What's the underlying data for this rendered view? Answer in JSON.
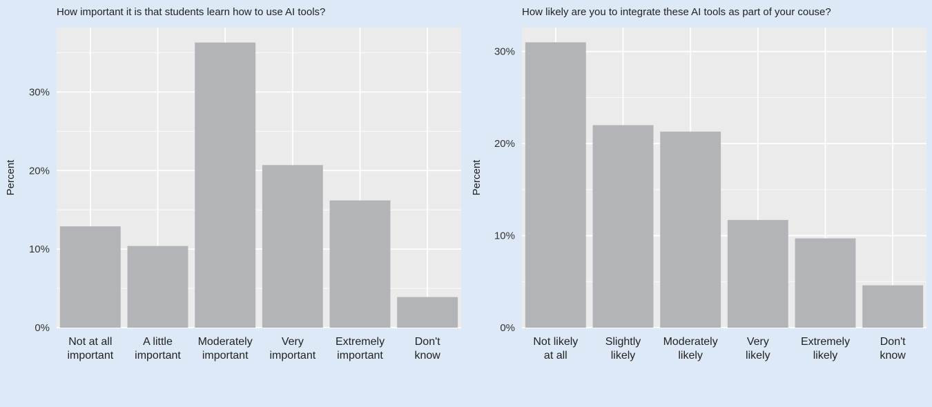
{
  "chart_data": [
    {
      "type": "bar",
      "title": "How important it is that students learn how to use AI tools?",
      "ylabel": "Percent",
      "xlabel": "",
      "categories": [
        [
          "Not at all",
          "important"
        ],
        [
          "A little",
          "important"
        ],
        [
          "Moderately",
          "important"
        ],
        [
          "Very",
          "important"
        ],
        [
          "Extremely",
          "important"
        ],
        [
          "Don't",
          "know"
        ]
      ],
      "values": [
        12.9,
        10.4,
        36.3,
        20.7,
        16.2,
        3.9
      ],
      "yticks": [
        0,
        10,
        20,
        30
      ],
      "ytick_labels": [
        "0%",
        "10%",
        "20%",
        "30%"
      ],
      "ylim": [
        0,
        38.2
      ],
      "grid": true,
      "bar_color": "#b3b4b8",
      "panel_color": "#ebebeb"
    },
    {
      "type": "bar",
      "title": "How likely are you to integrate these AI tools as part of your couse?",
      "ylabel": "Percent",
      "xlabel": "",
      "categories": [
        [
          "Not likely",
          "at all"
        ],
        [
          "Slightly",
          "likely"
        ],
        [
          "Moderately",
          "likely"
        ],
        [
          "Very",
          "likely"
        ],
        [
          "Extremely",
          "likely"
        ],
        [
          "Don't",
          "know"
        ]
      ],
      "values": [
        31.0,
        22.0,
        21.3,
        11.7,
        9.7,
        4.6
      ],
      "yticks": [
        0,
        10,
        20,
        30
      ],
      "ytick_labels": [
        "0%",
        "10%",
        "20%",
        "30%"
      ],
      "ylim": [
        0,
        32.6
      ],
      "grid": true,
      "bar_color": "#b3b4b8",
      "panel_color": "#ebebeb"
    }
  ]
}
